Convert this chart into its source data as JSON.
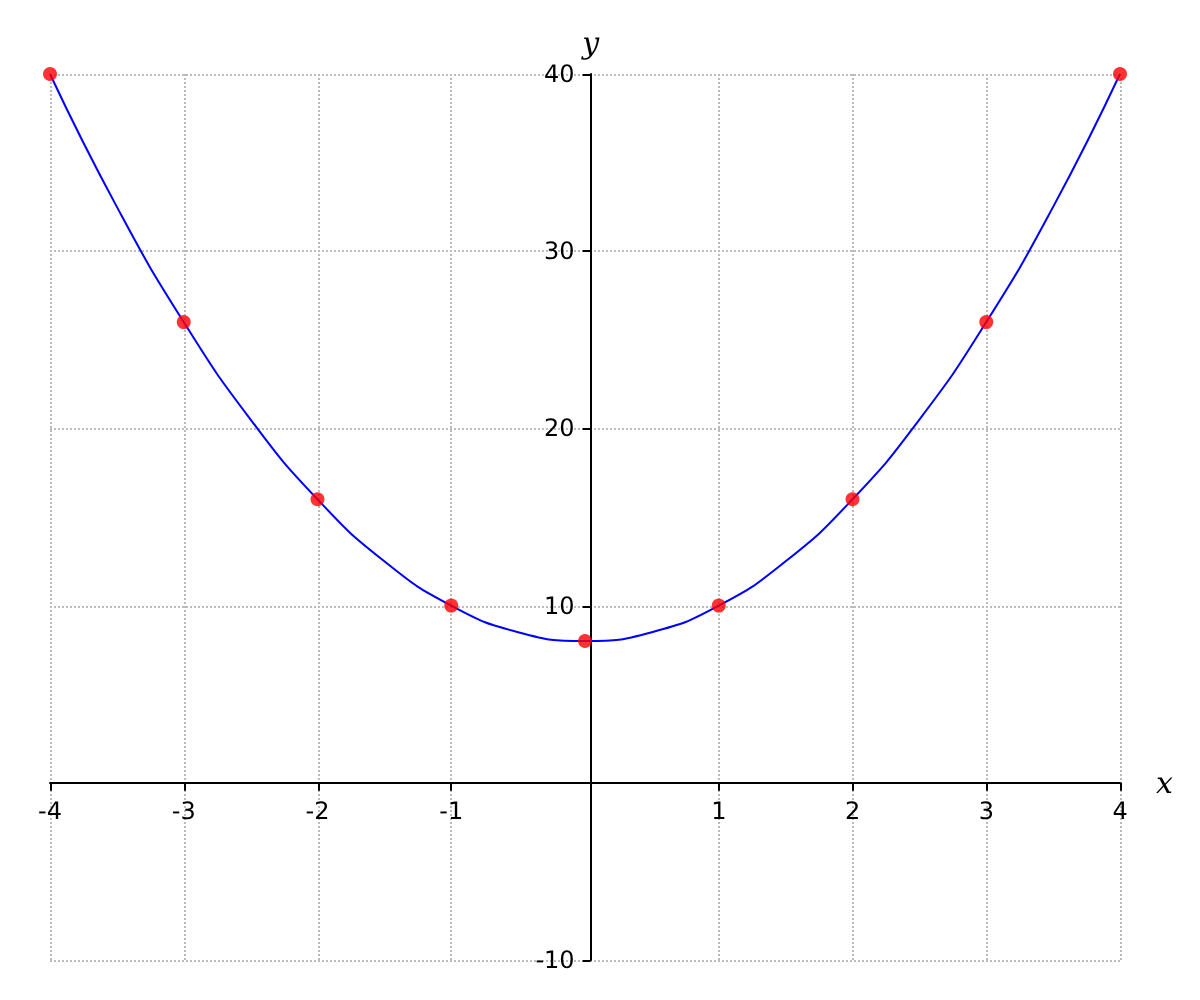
{
  "chart_data": {
    "type": "line",
    "xlabel": "x",
    "ylabel": "y",
    "xlim": [
      -4,
      4
    ],
    "ylim": [
      -10,
      40
    ],
    "xticks": [
      -4,
      -3,
      -2,
      -1,
      1,
      2,
      3,
      4
    ],
    "yticks": [
      -10,
      10,
      20,
      30,
      40
    ],
    "grid": true,
    "series": [
      {
        "color": "#0000ff",
        "marker": "none",
        "x": [
          -4,
          -3.5,
          -3,
          -2.5,
          -2,
          -1.5,
          -1,
          -0.5,
          0,
          0.5,
          1,
          1.5,
          2,
          2.5,
          3,
          3.5,
          4
        ],
        "values": [
          40,
          32.5,
          26,
          20.5,
          16,
          12.5,
          10,
          8.5,
          8,
          8.5,
          10,
          12.5,
          16,
          20.5,
          26,
          32.5,
          40
        ]
      },
      {
        "type": "scatter",
        "color": "#ff0000",
        "marker": "circle",
        "x": [
          -4,
          -3,
          -2,
          -1,
          0,
          1,
          2,
          3,
          4
        ],
        "values": [
          40,
          26,
          16,
          10,
          8,
          10,
          16,
          26,
          40
        ]
      }
    ]
  }
}
